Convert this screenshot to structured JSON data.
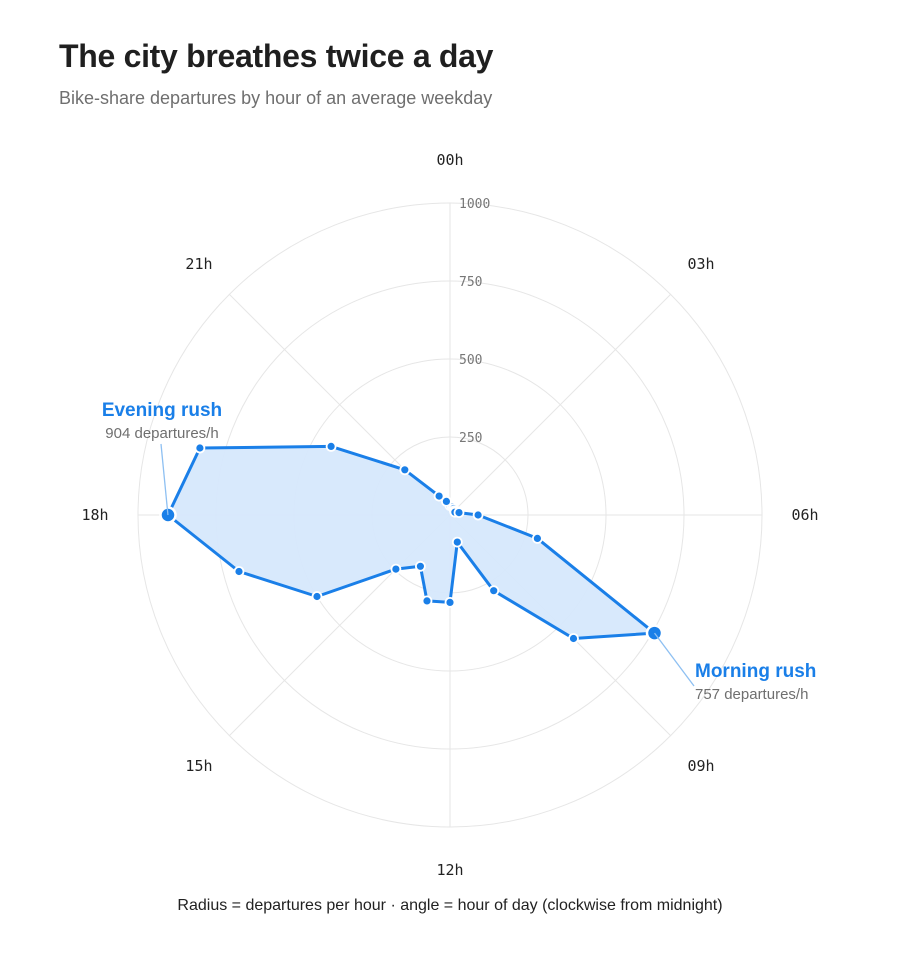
{
  "header": {
    "title": "The city breathes twice a day",
    "subtitle": "Bike-share departures by hour of an average weekday"
  },
  "caption": "Radius = departures per hour · angle = hour of day (clockwise from midnight)",
  "colors": {
    "accent": "#1a7fe8",
    "fill": "#d6e8fc",
    "grid": "#e6e6e6"
  },
  "chart_data": {
    "type": "radar",
    "title": "The city breathes twice a day",
    "subtitle": "Bike-share departures by hour of an average weekday",
    "angle": "hour of day (clockwise from midnight)",
    "radius": "departures per hour",
    "rlim": [
      0,
      1000
    ],
    "radial_ticks": [
      250,
      500,
      750,
      1000
    ],
    "radial_tick_labels": [
      "250",
      "500",
      "750",
      "1000"
    ],
    "angular_tick_hours": [
      0,
      3,
      6,
      9,
      12,
      15,
      18,
      21
    ],
    "angular_tick_labels": [
      "00h",
      "03h",
      "06h",
      "09h",
      "12h",
      "15h",
      "18h",
      "21h"
    ],
    "hours": [
      0,
      1,
      2,
      3,
      4,
      5,
      6,
      7,
      8,
      9,
      10,
      11,
      12,
      13,
      14,
      15,
      15.9,
      17,
      18,
      19,
      20,
      21,
      22,
      23
    ],
    "values": [
      30,
      28,
      24,
      20,
      18,
      30,
      90,
      290,
      757,
      560,
      280,
      90,
      280,
      285,
      190,
      245,
      500,
      700,
      904,
      830,
      440,
      205,
      70,
      45
    ],
    "grid": true,
    "legend": "none",
    "annotations": [
      {
        "hour": 8,
        "value": 757,
        "label": "Morning rush",
        "sublabel": "757 departures/h"
      },
      {
        "hour": 18,
        "value": 904,
        "label": "Evening rush",
        "sublabel": "904 departures/h"
      }
    ]
  }
}
